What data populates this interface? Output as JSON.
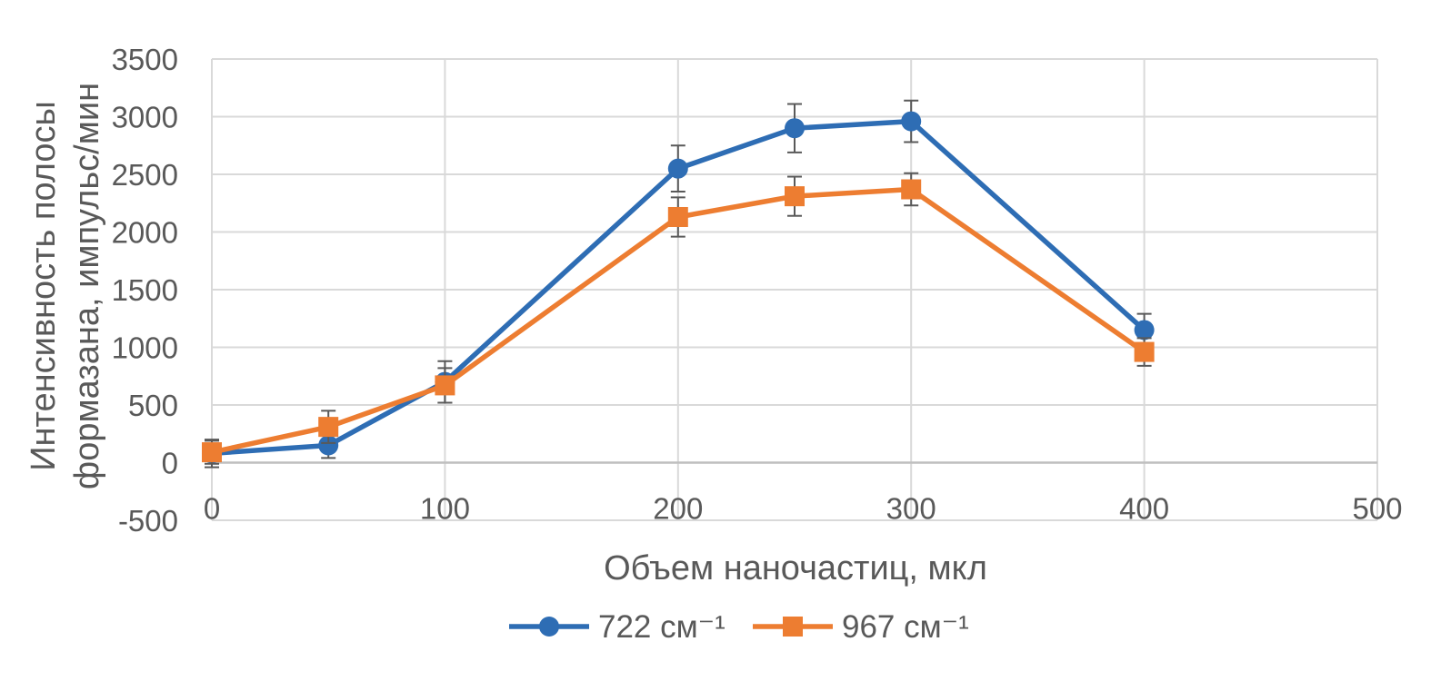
{
  "chart_data": {
    "type": "line",
    "title": "",
    "xlabel": "Объем наночастиц, мкл",
    "ylabel_lines": [
      "Интенсивность полосы",
      "формазана, импульс/мин"
    ],
    "xlim": [
      0,
      500
    ],
    "ylim": [
      -500,
      3500
    ],
    "x_ticks": [
      "0",
      "100",
      "200",
      "300",
      "400",
      "500"
    ],
    "y_ticks": [
      "-500",
      "0",
      "500",
      "1000",
      "1500",
      "2000",
      "2500",
      "3000",
      "3500"
    ],
    "grid": true,
    "legend_position": "bottom",
    "series": [
      {
        "name": "722 см⁻¹",
        "color": "#2E6DB4",
        "marker": "circle",
        "x": [
          0,
          50,
          100,
          200,
          250,
          300,
          400
        ],
        "y": [
          80,
          150,
          700,
          2550,
          2900,
          2960,
          1150
        ],
        "error": [
          120,
          110,
          180,
          200,
          210,
          180,
          140
        ]
      },
      {
        "name": "967 см⁻¹",
        "color": "#ED7D31",
        "marker": "square",
        "x": [
          0,
          50,
          100,
          200,
          250,
          300,
          400
        ],
        "y": [
          90,
          310,
          670,
          2130,
          2310,
          2370,
          960
        ],
        "error": [
          100,
          140,
          150,
          170,
          170,
          140,
          120
        ]
      }
    ]
  }
}
